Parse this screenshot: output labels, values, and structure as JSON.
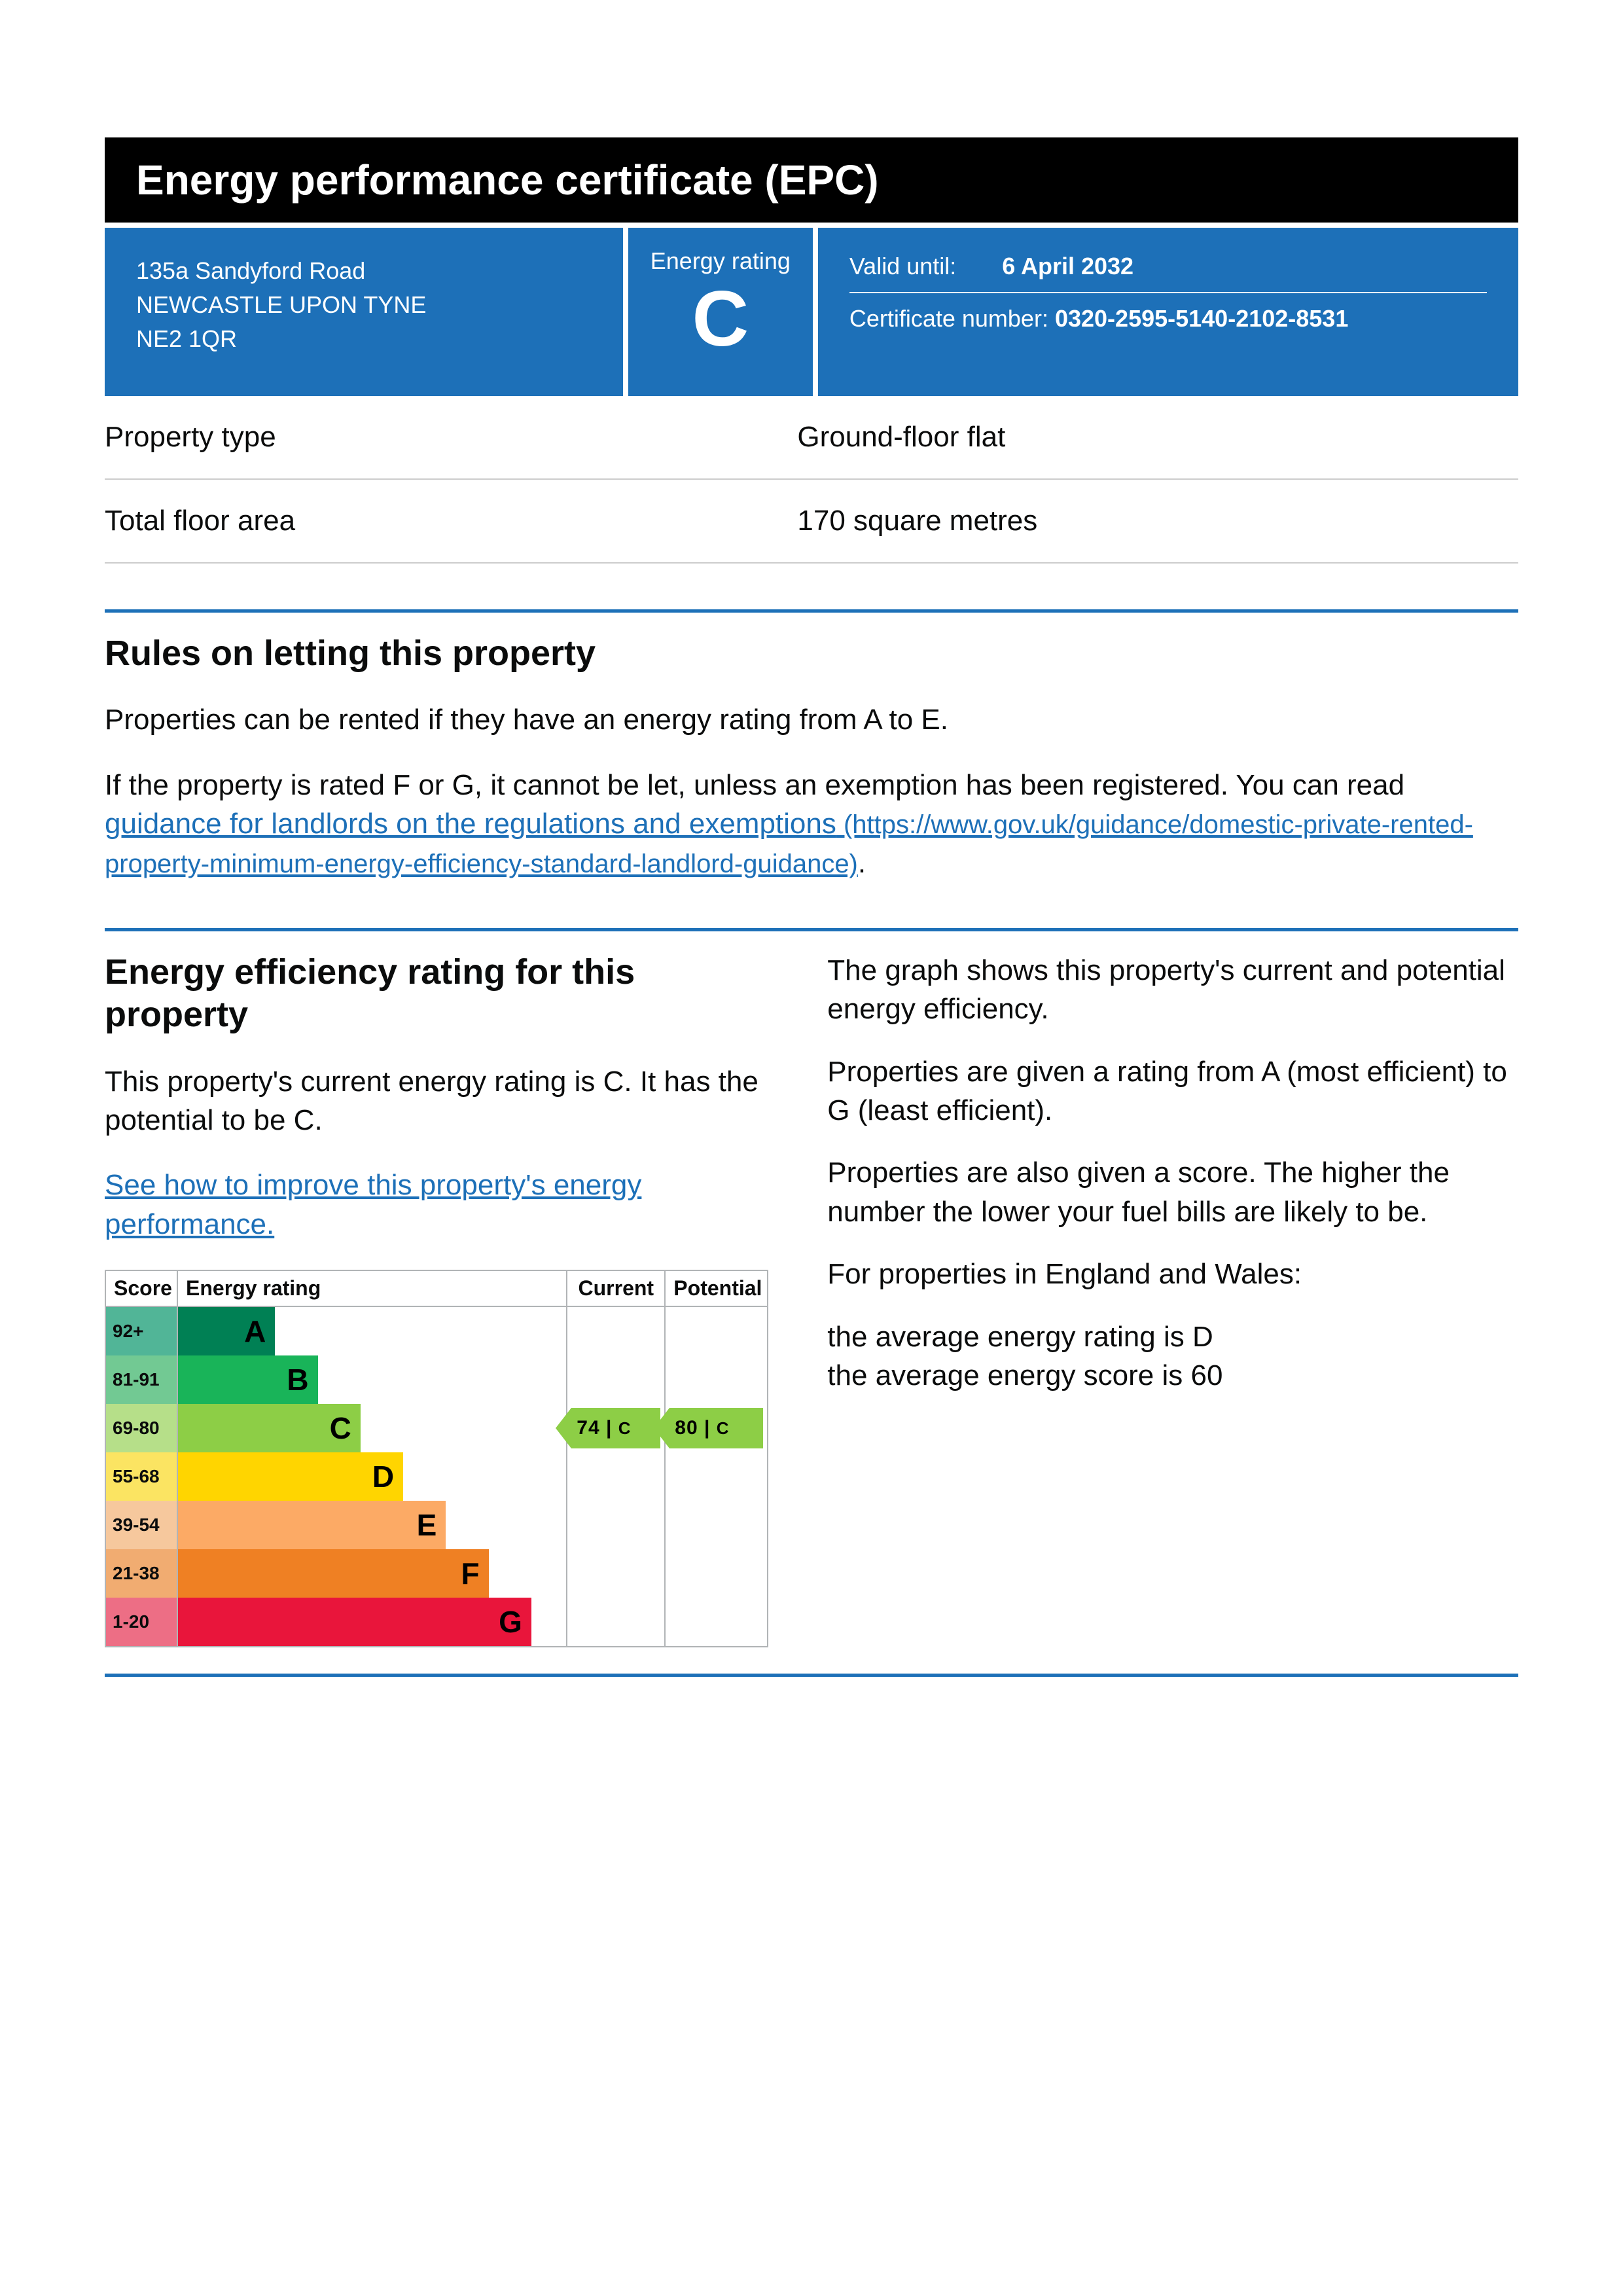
{
  "page_title": "Energy performance certificate (EPC)",
  "address": {
    "line1": "135a Sandyford Road",
    "line2": "NEWCASTLE UPON TYNE",
    "postcode": "NE2 1QR"
  },
  "energy_rating_label": "Energy rating",
  "energy_rating": "C",
  "valid_until_label": "Valid until:",
  "valid_until": "6 April 2032",
  "cert_number_label": "Certificate number:",
  "cert_number": "0320-2595-5140-2102-8531",
  "property_type_label": "Property type",
  "property_type": "Ground-floor flat",
  "floor_area_label": "Total floor area",
  "floor_area": "170 square metres",
  "letting": {
    "heading": "Rules on letting this property",
    "para1": "Properties can be rented if they have an energy rating from A to E.",
    "para2_pre": "If the property is rated F or G, it cannot be let, unless an exemption has been registered. You can read ",
    "link_text": "guidance for landlords on the regulations and exemptions",
    "link_url": " (https://www.gov.uk/guidance/domestic-private-rented-property-minimum-energy-efficiency-standard-landlord-guidance)",
    "para2_post": "."
  },
  "efficiency": {
    "heading": "Energy efficiency rating for this property",
    "para1": "This property's current energy rating is C. It has the potential to be C.",
    "improve_link": "See how to improve this property's energy performance.",
    "side_p1": "The graph shows this property's current and potential energy efficiency.",
    "side_p2": "Properties are given a rating from A (most efficient) to G (least efficient).",
    "side_p3": "Properties are also given a score. The higher the number the lower your fuel bills are likely to be.",
    "side_p4": "For properties in England and Wales:",
    "side_p5a": "the average energy rating is D",
    "side_p5b": "the average energy score is 60"
  },
  "chart": {
    "head_score": "Score",
    "head_rating": "Energy rating",
    "head_current": "Current",
    "head_potential": "Potential",
    "score_bg_light": "#f0f0ef",
    "bands": [
      {
        "score": "92+",
        "letter": "A",
        "width_pct": 25,
        "bar_color": "#008054",
        "score_bg": "#51b597",
        "text_color": "#000000"
      },
      {
        "score": "81-91",
        "letter": "B",
        "width_pct": 36,
        "bar_color": "#19b459",
        "score_bg": "#72c993",
        "text_color": "#000000"
      },
      {
        "score": "69-80",
        "letter": "C",
        "width_pct": 47,
        "bar_color": "#8dce46",
        "score_bg": "#b6df89",
        "text_color": "#000000"
      },
      {
        "score": "55-68",
        "letter": "D",
        "width_pct": 58,
        "bar_color": "#ffd500",
        "score_bg": "#fbe462",
        "text_color": "#000000"
      },
      {
        "score": "39-54",
        "letter": "E",
        "width_pct": 69,
        "bar_color": "#fcaa65",
        "score_bg": "#f6c89d",
        "text_color": "#000000"
      },
      {
        "score": "21-38",
        "letter": "F",
        "width_pct": 80,
        "bar_color": "#ef8023",
        "score_bg": "#f1ac71",
        "text_color": "#000000"
      },
      {
        "score": "1-20",
        "letter": "G",
        "width_pct": 91,
        "bar_color": "#e9153b",
        "score_bg": "#ed6e85",
        "text_color": "#000000"
      }
    ],
    "current": {
      "score": 74,
      "rating": "C",
      "band_index": 2,
      "color": "#8dce46"
    },
    "potential": {
      "score": 80,
      "rating": "C",
      "band_index": 2,
      "color": "#8dce46"
    }
  },
  "colors": {
    "divider": "#1d70b8",
    "link": "#1d70b8",
    "header_blue": "#1d70b8"
  }
}
